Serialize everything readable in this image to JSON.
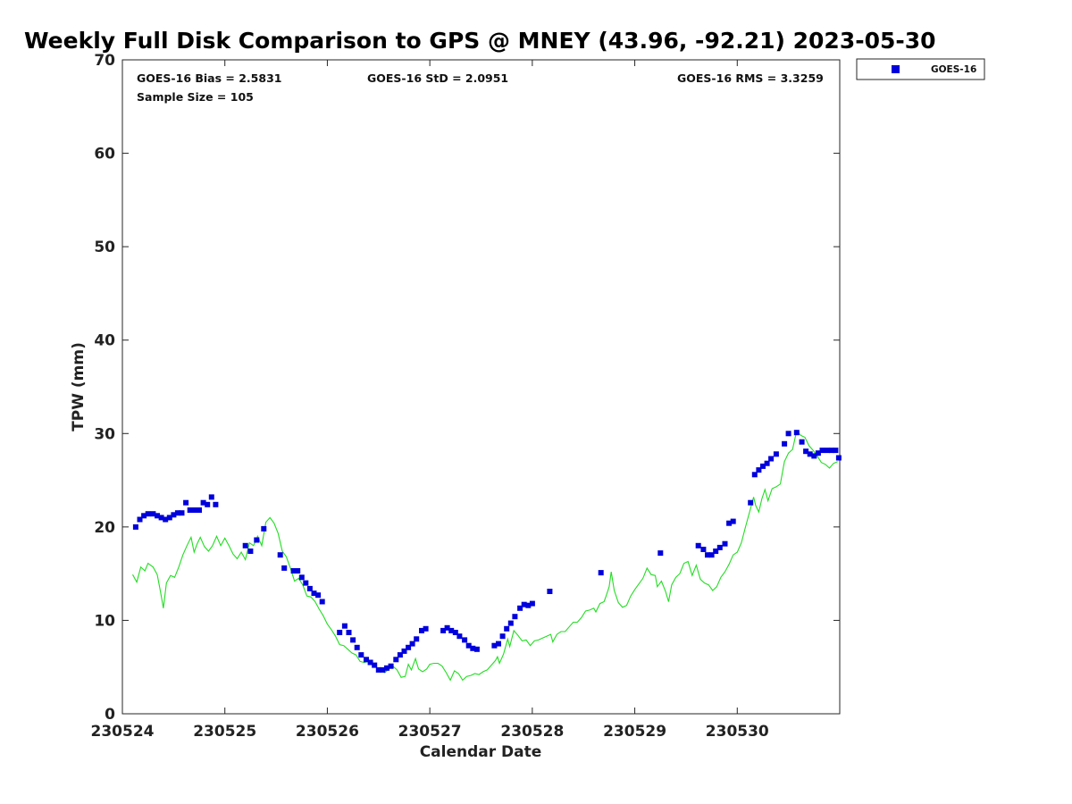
{
  "chart_data": {
    "type": "scatter",
    "title": "Weekly Full Disk Comparison to GPS @ MNEY (43.96, -92.21) 2023-05-30",
    "xlabel": "Calendar Date",
    "ylabel": "TPW (mm)",
    "xlim": [
      230524,
      230531
    ],
    "ylim": [
      0,
      70
    ],
    "x_ticks": [
      "230524",
      "230525",
      "230526",
      "230527",
      "230528",
      "230529",
      "230530"
    ],
    "y_ticks": [
      "0",
      "10",
      "20",
      "30",
      "40",
      "50",
      "60",
      "70"
    ],
    "grid": false,
    "legend_position": "top-right outside",
    "stats": {
      "bias": "GOES-16 Bias = 2.5831",
      "std": "GOES-16 StD = 2.0951",
      "rms": "GOES-16 RMS = 3.3259",
      "sample": "Sample Size = 105"
    },
    "series": [
      {
        "name": "GOES-16",
        "marker": "square",
        "color": "#0000dd",
        "points": [
          [
            230524.13,
            20.0
          ],
          [
            230524.17,
            20.8
          ],
          [
            230524.21,
            21.2
          ],
          [
            230524.25,
            21.4
          ],
          [
            230524.3,
            21.4
          ],
          [
            230524.34,
            21.2
          ],
          [
            230524.38,
            21.0
          ],
          [
            230524.42,
            20.8
          ],
          [
            230524.46,
            21.0
          ],
          [
            230524.5,
            21.3
          ],
          [
            230524.54,
            21.5
          ],
          [
            230524.58,
            21.5
          ],
          [
            230524.62,
            22.6
          ],
          [
            230524.66,
            21.8
          ],
          [
            230524.71,
            21.8
          ],
          [
            230524.75,
            21.8
          ],
          [
            230524.79,
            22.6
          ],
          [
            230524.83,
            22.4
          ],
          [
            230524.87,
            23.2
          ],
          [
            230524.91,
            22.4
          ],
          [
            230525.2,
            18.0
          ],
          [
            230525.25,
            17.4
          ],
          [
            230525.31,
            18.6
          ],
          [
            230525.38,
            19.8
          ],
          [
            230525.54,
            17.0
          ],
          [
            230525.58,
            15.6
          ],
          [
            230525.67,
            15.3
          ],
          [
            230525.71,
            15.3
          ],
          [
            230525.75,
            14.6
          ],
          [
            230525.79,
            14.0
          ],
          [
            230525.83,
            13.4
          ],
          [
            230525.87,
            12.9
          ],
          [
            230525.91,
            12.7
          ],
          [
            230525.95,
            12.0
          ],
          [
            230526.12,
            8.7
          ],
          [
            230526.17,
            9.4
          ],
          [
            230526.21,
            8.7
          ],
          [
            230526.25,
            7.9
          ],
          [
            230526.29,
            7.1
          ],
          [
            230526.33,
            6.3
          ],
          [
            230526.38,
            5.8
          ],
          [
            230526.42,
            5.5
          ],
          [
            230526.46,
            5.2
          ],
          [
            230526.5,
            4.7
          ],
          [
            230526.54,
            4.7
          ],
          [
            230526.58,
            4.9
          ],
          [
            230526.62,
            5.1
          ],
          [
            230526.67,
            5.8
          ],
          [
            230526.71,
            6.3
          ],
          [
            230526.75,
            6.7
          ],
          [
            230526.79,
            7.1
          ],
          [
            230526.83,
            7.5
          ],
          [
            230526.87,
            8.0
          ],
          [
            230526.92,
            8.9
          ],
          [
            230526.96,
            9.1
          ],
          [
            230527.13,
            8.9
          ],
          [
            230527.17,
            9.2
          ],
          [
            230527.21,
            8.9
          ],
          [
            230527.25,
            8.7
          ],
          [
            230527.29,
            8.3
          ],
          [
            230527.34,
            7.9
          ],
          [
            230527.38,
            7.3
          ],
          [
            230527.42,
            7.0
          ],
          [
            230527.46,
            6.9
          ],
          [
            230527.63,
            7.3
          ],
          [
            230527.67,
            7.5
          ],
          [
            230527.71,
            8.3
          ],
          [
            230527.75,
            9.1
          ],
          [
            230527.79,
            9.7
          ],
          [
            230527.83,
            10.4
          ],
          [
            230527.88,
            11.3
          ],
          [
            230527.92,
            11.7
          ],
          [
            230527.96,
            11.6
          ],
          [
            230528.0,
            11.8
          ],
          [
            230528.17,
            13.1
          ],
          [
            230528.67,
            15.1
          ],
          [
            230529.25,
            17.2
          ],
          [
            230529.62,
            18.0
          ],
          [
            230529.67,
            17.6
          ],
          [
            230529.71,
            17.0
          ],
          [
            230529.75,
            17.0
          ],
          [
            230529.79,
            17.4
          ],
          [
            230529.83,
            17.8
          ],
          [
            230529.88,
            18.2
          ],
          [
            230529.92,
            20.4
          ],
          [
            230529.96,
            20.6
          ],
          [
            230530.13,
            22.6
          ],
          [
            230530.17,
            25.6
          ],
          [
            230530.21,
            26.1
          ],
          [
            230530.25,
            26.5
          ],
          [
            230530.29,
            26.8
          ],
          [
            230530.33,
            27.3
          ],
          [
            230530.38,
            27.8
          ],
          [
            230530.46,
            28.9
          ],
          [
            230530.5,
            30.0
          ],
          [
            230530.58,
            30.1
          ],
          [
            230530.63,
            29.1
          ],
          [
            230530.67,
            28.1
          ],
          [
            230530.71,
            27.8
          ],
          [
            230530.75,
            27.6
          ],
          [
            230530.79,
            27.9
          ],
          [
            230530.83,
            28.2
          ],
          [
            230530.88,
            28.2
          ],
          [
            230530.92,
            28.2
          ],
          [
            230530.96,
            28.2
          ],
          [
            230530.99,
            27.4
          ]
        ]
      },
      {
        "name": "",
        "type": "line",
        "color": "#22dd22",
        "points": [
          [
            230524.1,
            14.9
          ],
          [
            230524.14,
            14.1
          ],
          [
            230524.18,
            15.7
          ],
          [
            230524.22,
            15.3
          ],
          [
            230524.25,
            16.1
          ],
          [
            230524.3,
            15.7
          ],
          [
            230524.34,
            14.9
          ],
          [
            230524.37,
            13.2
          ],
          [
            230524.4,
            11.3
          ],
          [
            230524.43,
            14.0
          ],
          [
            230524.47,
            14.8
          ],
          [
            230524.51,
            14.6
          ],
          [
            230524.55,
            15.7
          ],
          [
            230524.59,
            17.0
          ],
          [
            230524.63,
            18.0
          ],
          [
            230524.67,
            18.9
          ],
          [
            230524.7,
            17.3
          ],
          [
            230524.73,
            18.2
          ],
          [
            230524.76,
            18.9
          ],
          [
            230524.8,
            17.9
          ],
          [
            230524.84,
            17.4
          ],
          [
            230524.88,
            18.0
          ],
          [
            230524.92,
            19.0
          ],
          [
            230524.96,
            18.0
          ],
          [
            230525.0,
            18.8
          ],
          [
            230525.04,
            18.0
          ],
          [
            230525.08,
            17.1
          ],
          [
            230525.12,
            16.6
          ],
          [
            230525.16,
            17.3
          ],
          [
            230525.2,
            16.5
          ],
          [
            230525.24,
            18.3
          ],
          [
            230525.28,
            18.0
          ],
          [
            230525.32,
            19.0
          ],
          [
            230525.36,
            18.0
          ],
          [
            230525.4,
            20.5
          ],
          [
            230525.44,
            21.0
          ],
          [
            230525.48,
            20.4
          ],
          [
            230525.52,
            19.3
          ],
          [
            230525.56,
            17.4
          ],
          [
            230525.6,
            16.8
          ],
          [
            230525.64,
            15.6
          ],
          [
            230525.68,
            14.2
          ],
          [
            230525.72,
            14.5
          ],
          [
            230525.76,
            13.8
          ],
          [
            230525.8,
            12.6
          ],
          [
            230525.84,
            12.5
          ],
          [
            230525.88,
            12.0
          ],
          [
            230525.92,
            11.2
          ],
          [
            230525.96,
            10.5
          ],
          [
            230526.0,
            9.6
          ],
          [
            230526.04,
            9.0
          ],
          [
            230526.08,
            8.3
          ],
          [
            230526.12,
            7.4
          ],
          [
            230526.16,
            7.3
          ],
          [
            230526.2,
            6.9
          ],
          [
            230526.24,
            6.5
          ],
          [
            230526.28,
            6.3
          ],
          [
            230526.32,
            5.6
          ],
          [
            230526.36,
            5.5
          ],
          [
            230526.4,
            5.6
          ],
          [
            230526.44,
            5.2
          ],
          [
            230526.48,
            5.0
          ],
          [
            230526.52,
            4.6
          ],
          [
            230526.56,
            4.4
          ],
          [
            230526.6,
            4.8
          ],
          [
            230526.64,
            5.1
          ],
          [
            230526.68,
            4.7
          ],
          [
            230526.72,
            3.9
          ],
          [
            230526.76,
            4.0
          ],
          [
            230526.79,
            5.3
          ],
          [
            230526.82,
            4.7
          ],
          [
            230526.86,
            5.9
          ],
          [
            230526.89,
            4.8
          ],
          [
            230526.93,
            4.5
          ],
          [
            230526.97,
            4.8
          ],
          [
            230527.0,
            5.3
          ],
          [
            230527.04,
            5.4
          ],
          [
            230527.08,
            5.4
          ],
          [
            230527.12,
            5.1
          ],
          [
            230527.16,
            4.4
          ],
          [
            230527.2,
            3.6
          ],
          [
            230527.24,
            4.6
          ],
          [
            230527.28,
            4.3
          ],
          [
            230527.32,
            3.6
          ],
          [
            230527.36,
            4.0
          ],
          [
            230527.4,
            4.1
          ],
          [
            230527.44,
            4.3
          ],
          [
            230527.48,
            4.2
          ],
          [
            230527.52,
            4.5
          ],
          [
            230527.56,
            4.7
          ],
          [
            230527.6,
            5.2
          ],
          [
            230527.64,
            5.7
          ],
          [
            230527.66,
            6.1
          ],
          [
            230527.68,
            5.4
          ],
          [
            230527.72,
            6.4
          ],
          [
            230527.76,
            8.0
          ],
          [
            230527.78,
            7.2
          ],
          [
            230527.82,
            8.9
          ],
          [
            230527.86,
            8.4
          ],
          [
            230527.9,
            7.8
          ],
          [
            230527.94,
            7.9
          ],
          [
            230527.98,
            7.3
          ],
          [
            230528.02,
            7.8
          ],
          [
            230528.06,
            7.9
          ],
          [
            230528.1,
            8.1
          ],
          [
            230528.14,
            8.3
          ],
          [
            230528.18,
            8.5
          ],
          [
            230528.2,
            7.7
          ],
          [
            230528.24,
            8.5
          ],
          [
            230528.28,
            8.8
          ],
          [
            230528.32,
            8.8
          ],
          [
            230528.36,
            9.3
          ],
          [
            230528.4,
            9.8
          ],
          [
            230528.44,
            9.8
          ],
          [
            230528.48,
            10.3
          ],
          [
            230528.52,
            11.0
          ],
          [
            230528.56,
            11.1
          ],
          [
            230528.6,
            11.3
          ],
          [
            230528.62,
            10.9
          ],
          [
            230528.66,
            11.8
          ],
          [
            230528.7,
            12.0
          ],
          [
            230528.72,
            12.6
          ],
          [
            230528.75,
            13.6
          ],
          [
            230528.77,
            15.2
          ],
          [
            230528.8,
            13.2
          ],
          [
            230528.84,
            11.9
          ],
          [
            230528.88,
            11.4
          ],
          [
            230528.92,
            11.6
          ],
          [
            230528.96,
            12.6
          ],
          [
            230529.0,
            13.3
          ],
          [
            230529.04,
            13.9
          ],
          [
            230529.08,
            14.5
          ],
          [
            230529.12,
            15.6
          ],
          [
            230529.16,
            14.9
          ],
          [
            230529.2,
            14.8
          ],
          [
            230529.22,
            13.6
          ],
          [
            230529.26,
            14.2
          ],
          [
            230529.3,
            13.1
          ],
          [
            230529.33,
            12.0
          ],
          [
            230529.36,
            13.8
          ],
          [
            230529.4,
            14.6
          ],
          [
            230529.44,
            15.0
          ],
          [
            230529.48,
            16.1
          ],
          [
            230529.52,
            16.3
          ],
          [
            230529.56,
            14.8
          ],
          [
            230529.6,
            15.9
          ],
          [
            230529.64,
            14.4
          ],
          [
            230529.68,
            14.0
          ],
          [
            230529.72,
            13.8
          ],
          [
            230529.76,
            13.2
          ],
          [
            230529.8,
            13.6
          ],
          [
            230529.84,
            14.6
          ],
          [
            230529.88,
            15.2
          ],
          [
            230529.92,
            16.0
          ],
          [
            230529.96,
            17.0
          ],
          [
            230530.0,
            17.3
          ],
          [
            230530.04,
            18.3
          ],
          [
            230530.08,
            20.0
          ],
          [
            230530.12,
            21.6
          ],
          [
            230530.16,
            23.2
          ],
          [
            230530.18,
            22.3
          ],
          [
            230530.21,
            21.6
          ],
          [
            230530.24,
            23.0
          ],
          [
            230530.27,
            24.0
          ],
          [
            230530.3,
            22.8
          ],
          [
            230530.34,
            24.1
          ],
          [
            230530.38,
            24.3
          ],
          [
            230530.42,
            24.6
          ],
          [
            230530.46,
            27.0
          ],
          [
            230530.5,
            27.9
          ],
          [
            230530.54,
            28.3
          ],
          [
            230530.58,
            30.3
          ],
          [
            230530.62,
            29.8
          ],
          [
            230530.66,
            29.6
          ],
          [
            230530.7,
            28.7
          ],
          [
            230530.74,
            28.2
          ],
          [
            230530.78,
            27.6
          ],
          [
            230530.82,
            26.9
          ],
          [
            230530.86,
            26.7
          ],
          [
            230530.9,
            26.3
          ],
          [
            230530.94,
            26.8
          ],
          [
            230530.98,
            27.0
          ]
        ]
      }
    ]
  }
}
